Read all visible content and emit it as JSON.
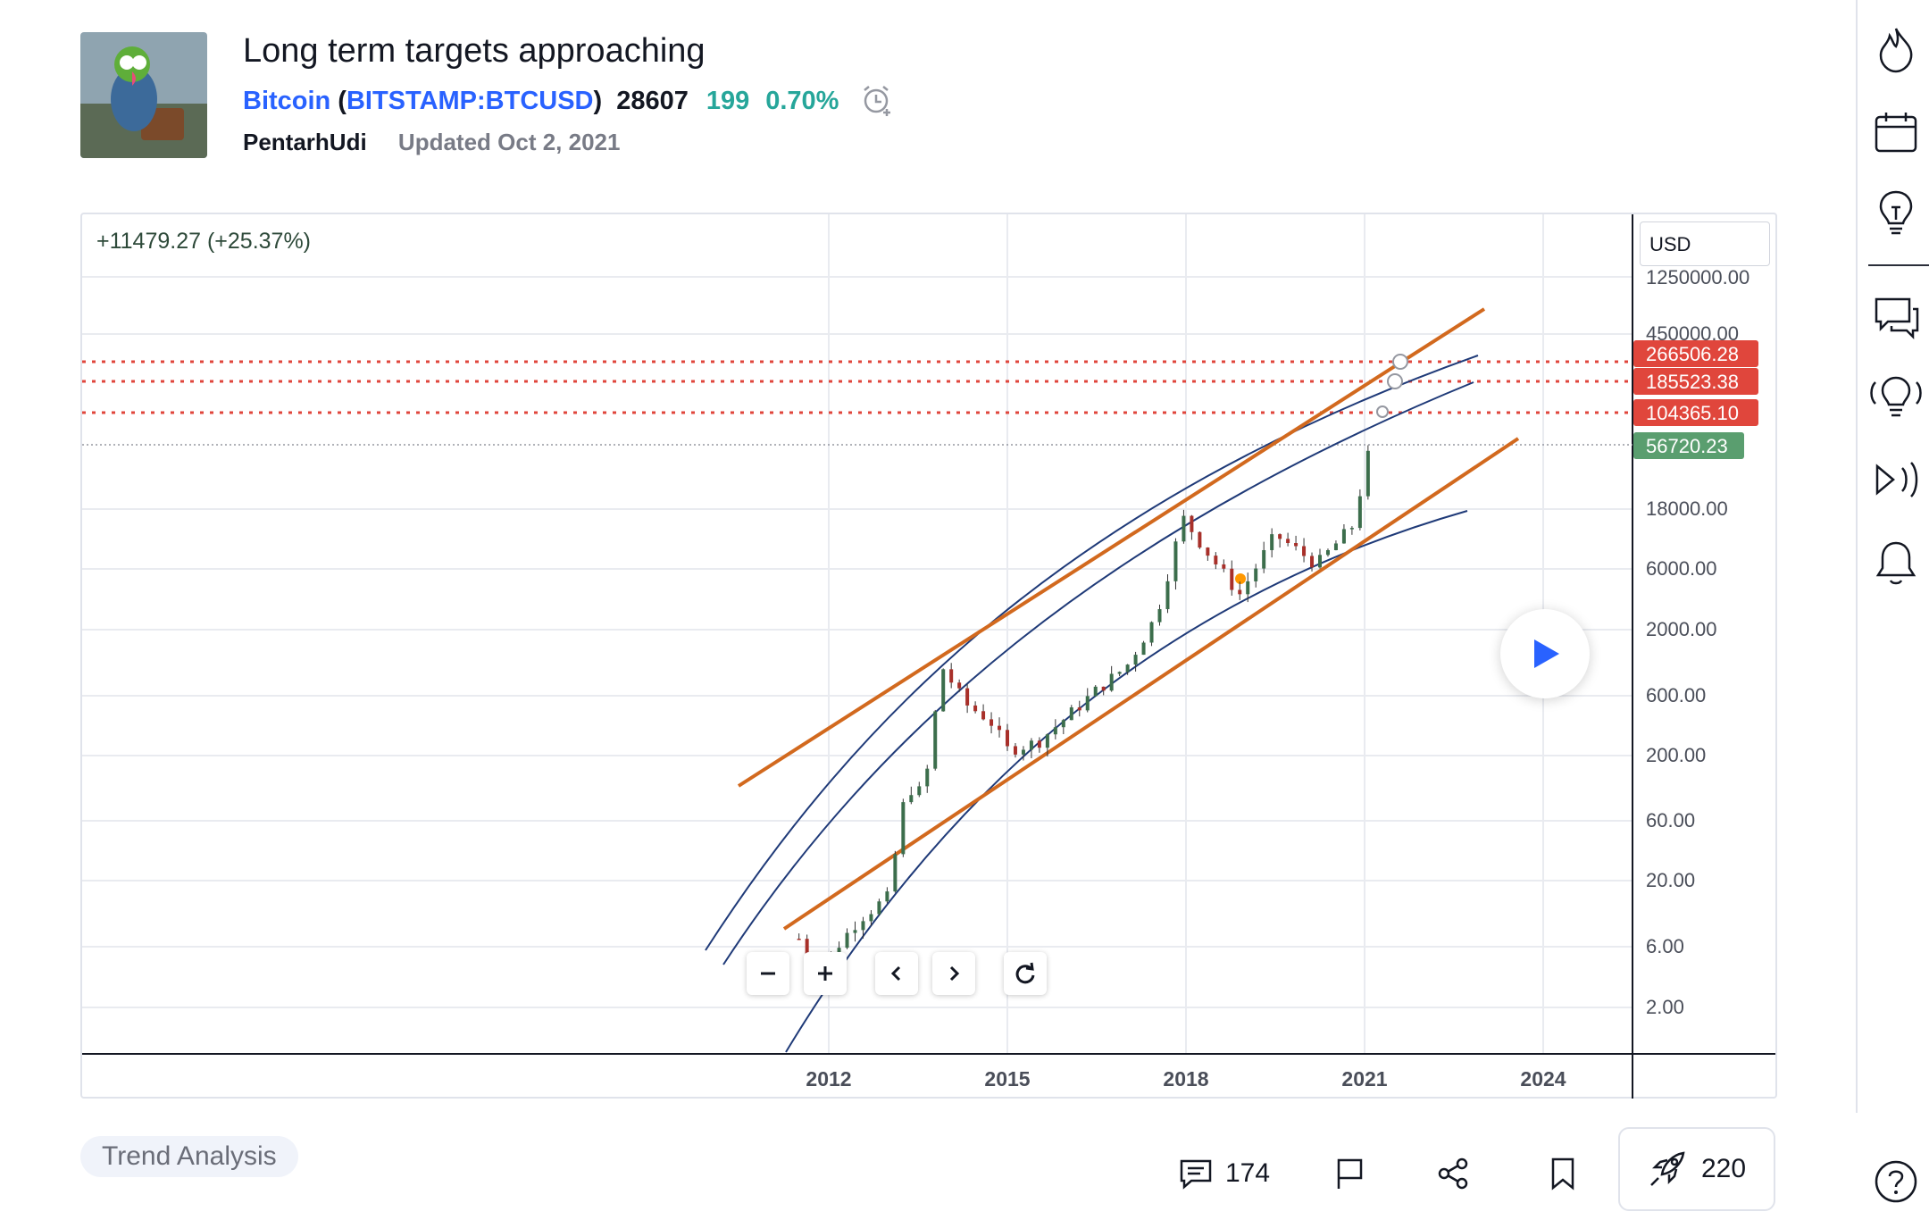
{
  "idea": {
    "title": "Long term targets approaching",
    "symbol_name": "Bitcoin",
    "paren_open": "(",
    "symbol_ticker": "BITSTAMP:BTCUSD",
    "paren_close": ")",
    "price": "28607",
    "change": "199",
    "change_percent": "0.70%",
    "author": "PentarhUdi",
    "updated": "Updated Oct 2, 2021"
  },
  "chart": {
    "pnl_label": "+11479.27 (+25.37%)",
    "currency": "USD",
    "price_axis": [
      "1250000.00",
      "450000.00",
      "18000.00",
      "6000.00",
      "2000.00",
      "600.00",
      "200.00",
      "60.00",
      "20.00",
      "6.00",
      "2.00"
    ],
    "time_axis": [
      "2012",
      "2015",
      "2018",
      "2021",
      "2024"
    ],
    "price_tags": [
      {
        "label": "266506.28",
        "color": "#e0463c"
      },
      {
        "label": "185523.38",
        "color": "#e0463c"
      },
      {
        "label": "104365.10",
        "color": "#e0463c"
      },
      {
        "label": "56720.23",
        "color": "#5a9e6f"
      }
    ]
  },
  "chart_data": {
    "type": "candlestick",
    "title": "Long term targets approaching",
    "symbol": "BITSTAMP:BTCUSD",
    "y_scale": "log",
    "currency": "USD",
    "ylim": [
      1.2,
      1250000
    ],
    "x_ticks": [
      "2012",
      "2015",
      "2018",
      "2021",
      "2024"
    ],
    "y_ticks": [
      2,
      6,
      20,
      60,
      200,
      600,
      2000,
      6000,
      18000,
      450000,
      1250000
    ],
    "price_series": [
      {
        "t": 2011.5,
        "v": 7
      },
      {
        "t": 2011.7,
        "v": 3
      },
      {
        "t": 2012.0,
        "v": 5
      },
      {
        "t": 2012.5,
        "v": 10
      },
      {
        "t": 2013.0,
        "v": 15
      },
      {
        "t": 2013.3,
        "v": 110
      },
      {
        "t": 2013.6,
        "v": 100
      },
      {
        "t": 2013.9,
        "v": 1000
      },
      {
        "t": 2014.3,
        "v": 500
      },
      {
        "t": 2014.7,
        "v": 380
      },
      {
        "t": 2015.0,
        "v": 220
      },
      {
        "t": 2015.5,
        "v": 250
      },
      {
        "t": 2016.0,
        "v": 400
      },
      {
        "t": 2016.5,
        "v": 650
      },
      {
        "t": 2017.0,
        "v": 1000
      },
      {
        "t": 2017.5,
        "v": 2500
      },
      {
        "t": 2017.95,
        "v": 15000
      },
      {
        "t": 2018.4,
        "v": 7500
      },
      {
        "t": 2018.9,
        "v": 3700
      },
      {
        "t": 2019.5,
        "v": 11000
      },
      {
        "t": 2020.2,
        "v": 6400
      },
      {
        "t": 2020.8,
        "v": 13000
      },
      {
        "t": 2021.1,
        "v": 56720
      }
    ],
    "horizontal_levels": [
      266506.28,
      185523.38,
      104365.1
    ],
    "last_price": 56720.23,
    "trendlines": [
      "orange upper channel",
      "orange lower channel",
      "blue upper arc",
      "blue middle arc",
      "blue lower arc"
    ],
    "legend": "none",
    "grid": true
  },
  "tags": [
    "Trend Analysis"
  ],
  "actions": {
    "comments": "174",
    "boosts": "220"
  },
  "colors": {
    "accent": "#2962ff",
    "positive": "#26a69a",
    "level_line": "#e0463c",
    "trend_orange": "#d2691e",
    "arc_blue": "#1f3a78"
  }
}
